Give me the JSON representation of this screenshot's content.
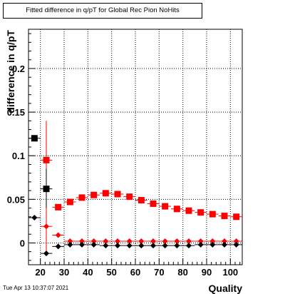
{
  "chart_data": {
    "type": "scatter",
    "title": "Fitted difference in q/pT for Global Rec Pion NoHits",
    "xlabel": "Quality",
    "ylabel": "difference in q/pT",
    "xlim": [
      15,
      105
    ],
    "ylim": [
      -0.025,
      0.245
    ],
    "x_ticks": [
      20,
      30,
      40,
      50,
      60,
      70,
      80,
      90,
      100
    ],
    "y_ticks": [
      0,
      0.05,
      0.1,
      0.15,
      0.2
    ],
    "y_tick_labels": [
      "0",
      "0.05",
      "0.1",
      "0.15",
      "0.2"
    ],
    "grid": true,
    "series": [
      {
        "marker": "square",
        "color": "#ff0000",
        "points": [
          {
            "x": 22.5,
            "y": 0.095,
            "err_lo": 0.03,
            "err_hi": 0.14,
            "xerr": 2.5
          },
          {
            "x": 27.5,
            "y": 0.041,
            "xerr": 2.5
          },
          {
            "x": 32.5,
            "y": 0.047,
            "xerr": 2.5
          },
          {
            "x": 37.5,
            "y": 0.052,
            "xerr": 2.5
          },
          {
            "x": 42.5,
            "y": 0.055,
            "xerr": 2.5
          },
          {
            "x": 47.5,
            "y": 0.057,
            "xerr": 2.5
          },
          {
            "x": 52.5,
            "y": 0.056,
            "xerr": 2.5
          },
          {
            "x": 57.5,
            "y": 0.053,
            "xerr": 2.5
          },
          {
            "x": 62.5,
            "y": 0.049,
            "xerr": 2.5
          },
          {
            "x": 67.5,
            "y": 0.045,
            "xerr": 2.5
          },
          {
            "x": 72.5,
            "y": 0.042,
            "xerr": 2.5
          },
          {
            "x": 77.5,
            "y": 0.039,
            "xerr": 2.5
          },
          {
            "x": 82.5,
            "y": 0.037,
            "xerr": 2.5
          },
          {
            "x": 87.5,
            "y": 0.035,
            "xerr": 2.5
          },
          {
            "x": 92.5,
            "y": 0.033,
            "xerr": 2.5
          },
          {
            "x": 97.5,
            "y": 0.031,
            "xerr": 2.5
          },
          {
            "x": 102.5,
            "y": 0.03,
            "xerr": 2.5
          }
        ]
      },
      {
        "marker": "diamond",
        "color": "#ff0000",
        "points": [
          {
            "x": 22.5,
            "y": 0.019,
            "err_lo": -0.01,
            "err_hi": 0.05,
            "xerr": 2.5
          },
          {
            "x": 27.5,
            "y": 0.009,
            "xerr": 2.5
          },
          {
            "x": 32.5,
            "y": 0.002,
            "xerr": 2.5
          },
          {
            "x": 37.5,
            "y": 0.002,
            "xerr": 2.5
          },
          {
            "x": 42.5,
            "y": 0.002,
            "xerr": 2.5
          },
          {
            "x": 47.5,
            "y": 0.002,
            "xerr": 2.5
          },
          {
            "x": 52.5,
            "y": 0.002,
            "xerr": 2.5
          },
          {
            "x": 57.5,
            "y": 0.002,
            "xerr": 2.5
          },
          {
            "x": 62.5,
            "y": 0.002,
            "xerr": 2.5
          },
          {
            "x": 67.5,
            "y": 0.002,
            "xerr": 2.5
          },
          {
            "x": 72.5,
            "y": 0.002,
            "xerr": 2.5
          },
          {
            "x": 77.5,
            "y": 0.002,
            "xerr": 2.5
          },
          {
            "x": 82.5,
            "y": 0.002,
            "xerr": 2.5
          },
          {
            "x": 87.5,
            "y": 0.002,
            "xerr": 2.5
          },
          {
            "x": 92.5,
            "y": 0.002,
            "xerr": 2.5
          },
          {
            "x": 97.5,
            "y": 0.002,
            "xerr": 2.5
          },
          {
            "x": 102.5,
            "y": 0.002,
            "xerr": 2.5
          }
        ]
      },
      {
        "marker": "square",
        "color": "#000000",
        "points": [
          {
            "x": 17.5,
            "y": 0.12,
            "xerr": 2.5
          },
          {
            "x": 22.5,
            "y": 0.062,
            "err_lo": 0.04,
            "err_hi": 0.085,
            "xerr": 2.5
          }
        ]
      },
      {
        "marker": "diamond",
        "color": "#000000",
        "points": [
          {
            "x": 17.5,
            "y": 0.029,
            "xerr": 2.5
          },
          {
            "x": 22.5,
            "y": -0.012,
            "xerr": 2.5
          },
          {
            "x": 27.5,
            "y": -0.004,
            "xerr": 2.5
          },
          {
            "x": 32.5,
            "y": -0.002,
            "xerr": 2.5
          },
          {
            "x": 37.5,
            "y": -0.002,
            "xerr": 2.5
          },
          {
            "x": 42.5,
            "y": -0.002,
            "xerr": 2.5
          },
          {
            "x": 47.5,
            "y": -0.003,
            "xerr": 2.5
          },
          {
            "x": 52.5,
            "y": -0.003,
            "xerr": 2.5
          },
          {
            "x": 57.5,
            "y": -0.003,
            "xerr": 2.5
          },
          {
            "x": 62.5,
            "y": -0.003,
            "xerr": 2.5
          },
          {
            "x": 67.5,
            "y": -0.003,
            "xerr": 2.5
          },
          {
            "x": 72.5,
            "y": -0.003,
            "xerr": 2.5
          },
          {
            "x": 77.5,
            "y": -0.003,
            "xerr": 2.5
          },
          {
            "x": 82.5,
            "y": -0.003,
            "xerr": 2.5
          },
          {
            "x": 87.5,
            "y": -0.002,
            "xerr": 2.5
          },
          {
            "x": 92.5,
            "y": -0.002,
            "xerr": 2.5
          },
          {
            "x": 97.5,
            "y": -0.002,
            "xerr": 2.5
          },
          {
            "x": 102.5,
            "y": -0.002,
            "xerr": 2.5
          }
        ]
      }
    ]
  },
  "timestamp": "Tue Apr 13 10:37:07 2021"
}
